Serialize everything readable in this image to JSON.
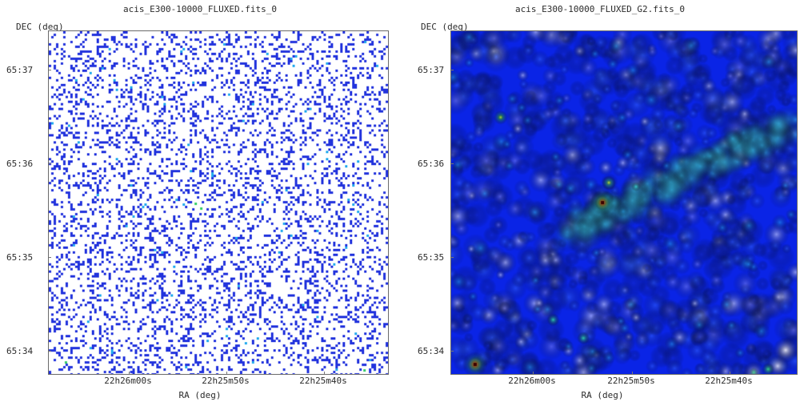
{
  "panels": [
    {
      "title": "acis_E300-10000_FLUXED.fits_0",
      "ylabel": "DEC (deg)",
      "xlabel": "RA (deg)",
      "yticks": [
        "65:37",
        "65:36",
        "65:35",
        "65:34"
      ],
      "xticks": [
        "22h26m00s",
        "22h25m50s",
        "22h25m40s"
      ]
    },
    {
      "title": "acis_E300-10000_FLUXED_G2.fits_0",
      "ylabel": "DEC (deg)",
      "xlabel": "RA (deg)",
      "yticks": [
        "65:37",
        "65:36",
        "65:35",
        "65:34"
      ],
      "xticks": [
        "22h26m00s",
        "22h25m50s",
        "22h25m40s"
      ]
    }
  ],
  "colors": {
    "sparse_pixel": "#2233dd",
    "background_left": "#ffffff",
    "smoothed_base": "#0a24e6",
    "smoothed_diffuse": "#29c3f0",
    "source_core": "#d91414",
    "frame": "#6a6a6a"
  }
}
